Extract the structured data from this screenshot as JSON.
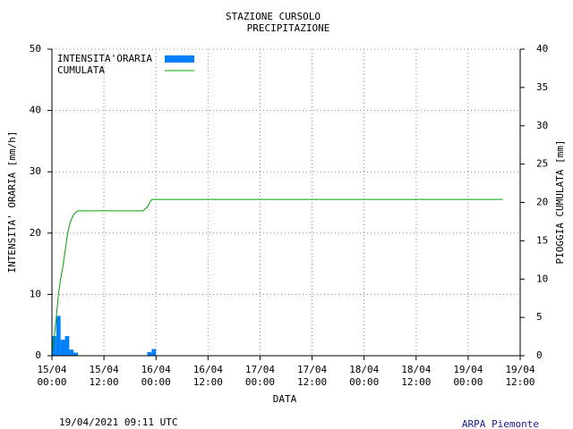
{
  "chart_data": {
    "type": "bar",
    "title": "STAZIONE CURSOLO",
    "subtitle": "PRECIPITAZIONE",
    "x_label": "DATA",
    "y_label": "INTENSITA' ORARIA [mm/h]",
    "y2_label": "PIOGGIA CUMULATA [mm]",
    "footer_left": "19/04/2021 09:11 UTC",
    "footer_right": "ARPA Piemonte",
    "xlim": [
      0,
      108
    ],
    "xticks": [
      {
        "value": 0,
        "label": "15/04 00:00"
      },
      {
        "value": 12,
        "label": "15/04 12:00"
      },
      {
        "value": 24,
        "label": "16/04 00:00"
      },
      {
        "value": 36,
        "label": "16/04 12:00"
      },
      {
        "value": 48,
        "label": "17/04 00:00"
      },
      {
        "value": 60,
        "label": "17/04 12:00"
      },
      {
        "value": 72,
        "label": "18/04 00:00"
      },
      {
        "value": 84,
        "label": "18/04 12:00"
      },
      {
        "value": 96,
        "label": "19/04 00:00"
      },
      {
        "value": 108,
        "label": "19/04 12:00"
      }
    ],
    "ylim": [
      0,
      50
    ],
    "yticks": [
      0,
      10,
      20,
      30,
      40,
      50
    ],
    "y2lim": [
      0,
      40
    ],
    "y2ticks": [
      0,
      5,
      10,
      15,
      20,
      25,
      30,
      35,
      40
    ],
    "grid": true,
    "legend": "top-left",
    "series": [
      {
        "name": "INTENSITA'ORARIA",
        "type": "bar",
        "color": "#0080ff",
        "x": [
          0,
          1,
          2,
          3,
          4,
          5,
          22,
          23
        ],
        "values": [
          3.2,
          6.5,
          2.6,
          3.2,
          1.0,
          0.5,
          0.6,
          1.1
        ]
      },
      {
        "name": "CUMULATA",
        "type": "line",
        "axis": "y2",
        "color": "#00a000",
        "x": [
          0,
          0.5,
          1,
          1.5,
          2,
          2.5,
          3,
          3.5,
          4,
          4.5,
          5,
          5.5,
          6,
          7,
          8,
          21,
          22,
          23,
          24,
          104
        ],
        "values": [
          0.5,
          2.2,
          5,
          8,
          10,
          11.5,
          13.5,
          15.5,
          17,
          17.8,
          18.4,
          18.7,
          18.9,
          18.9,
          18.9,
          18.9,
          19.4,
          20.4,
          20.4,
          20.4
        ]
      }
    ]
  }
}
